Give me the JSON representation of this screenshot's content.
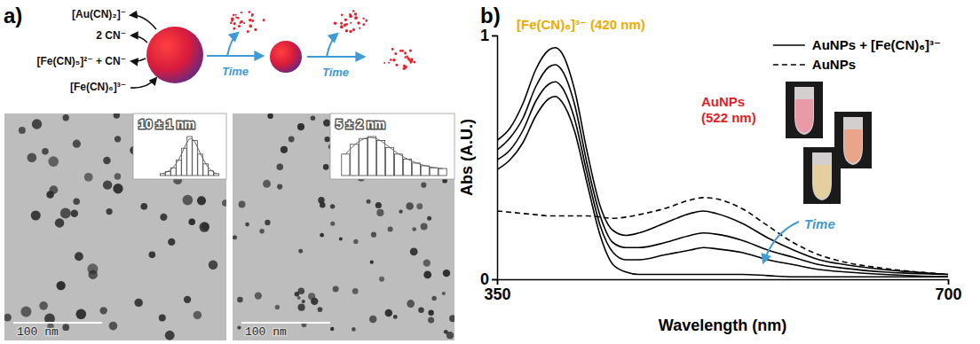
{
  "panel_labels": [
    "a)",
    "b)"
  ],
  "panel_a": {
    "schematic": {
      "reagents": [
        "[Au(CN)₂]⁻",
        "2 CN⁻",
        "[Fe(CN)₅]²⁻ + CN⁻",
        "[Fe(CN)₆]³⁻"
      ],
      "arrows": [
        "Time",
        "Time"
      ]
    },
    "tem_images": [
      {
        "size_label": "10 ± 1 nm",
        "scale_bar": "100 nm",
        "histogram": [
          0.05,
          0.1,
          0.2,
          0.4,
          0.7,
          1.0,
          0.9,
          0.55,
          0.3,
          0.12,
          0.05
        ]
      },
      {
        "size_label": "5 ± 2 nm",
        "scale_bar": "100 nm",
        "histogram": [
          0.55,
          0.8,
          0.95,
          1.0,
          0.9,
          0.72,
          0.55,
          0.42,
          0.32,
          0.25,
          0.2,
          0.18
        ]
      }
    ]
  },
  "chart_data": {
    "type": "line",
    "x_label": "Wavelength (nm)",
    "y_label": "Abs (A.U.)",
    "x": [
      350,
      360,
      370,
      380,
      390,
      395,
      400,
      410,
      420,
      430,
      440,
      450,
      460,
      480,
      500,
      510,
      520,
      540,
      560,
      580,
      600,
      620,
      650,
      700
    ],
    "series": [
      {
        "name": "AuNPs + [Fe(CN)₆]³⁻",
        "color": "#000000",
        "line_style": "solid",
        "values": [
          0.57,
          0.62,
          0.72,
          0.86,
          0.94,
          0.95,
          0.93,
          0.78,
          0.52,
          0.3,
          0.2,
          0.18,
          0.19,
          0.23,
          0.27,
          0.28,
          0.27,
          0.23,
          0.17,
          0.12,
          0.08,
          0.06,
          0.04,
          0.02
        ]
      },
      {
        "color": "#000000",
        "line_style": "solid",
        "values": [
          0.53,
          0.58,
          0.66,
          0.79,
          0.87,
          0.88,
          0.86,
          0.72,
          0.47,
          0.26,
          0.15,
          0.13,
          0.13,
          0.15,
          0.18,
          0.19,
          0.185,
          0.16,
          0.12,
          0.09,
          0.06,
          0.045,
          0.03,
          0.02
        ]
      },
      {
        "color": "#000000",
        "line_style": "solid",
        "values": [
          0.49,
          0.53,
          0.61,
          0.73,
          0.8,
          0.81,
          0.79,
          0.66,
          0.43,
          0.22,
          0.11,
          0.08,
          0.08,
          0.1,
          0.12,
          0.13,
          0.125,
          0.11,
          0.08,
          0.06,
          0.04,
          0.03,
          0.02,
          0.01
        ]
      },
      {
        "color": "#000000",
        "line_style": "solid",
        "values": [
          0.45,
          0.49,
          0.56,
          0.67,
          0.74,
          0.75,
          0.73,
          0.61,
          0.39,
          0.18,
          0.06,
          0.03,
          0.02,
          0.02,
          0.02,
          0.02,
          0.02,
          0.02,
          0.015,
          0.01,
          0.01,
          0.01,
          0.01,
          0.01
        ]
      },
      {
        "name": "AuNPs",
        "color": "#000000",
        "line_style": "dashed",
        "values": [
          0.28,
          0.275,
          0.27,
          0.265,
          0.26,
          0.26,
          0.26,
          0.26,
          0.26,
          0.255,
          0.25,
          0.255,
          0.265,
          0.29,
          0.325,
          0.335,
          0.33,
          0.29,
          0.22,
          0.15,
          0.1,
          0.07,
          0.045,
          0.02
        ]
      }
    ],
    "xlim": [
      350,
      700
    ],
    "ylim": [
      0,
      1
    ],
    "xticks": [
      350,
      700
    ],
    "yticks": [
      0,
      1
    ],
    "grid": false,
    "legend": "top-right",
    "annotations": [
      {
        "text": "[Fe(CN)₆]³⁻ (420 nm)",
        "color": "#f2a900"
      },
      {
        "text": "AuNPs",
        "color": "#e31e24"
      },
      {
        "text": "(522 nm)",
        "color": "#e31e24"
      },
      {
        "text": "Time",
        "color": "#3f9ad6"
      }
    ]
  }
}
